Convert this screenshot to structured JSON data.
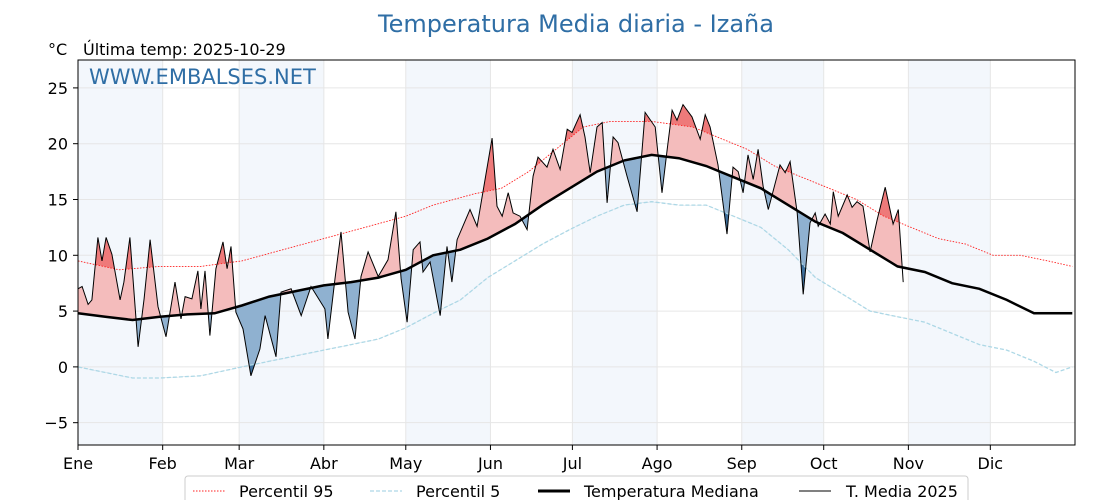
{
  "chart_data": {
    "type": "line",
    "title": "Temperatura Media diaria - Izaña",
    "ylabel": "°C",
    "subtitle": "Última temp: 2025-10-29",
    "watermark": "WWW.EMBALSES.NET",
    "ylim": [
      -7,
      27.5
    ],
    "xlim": [
      0,
      364
    ],
    "yticks": [
      -5,
      0,
      5,
      10,
      15,
      20,
      25
    ],
    "ytick_labels": [
      "−5",
      "0",
      "5",
      "10",
      "15",
      "20",
      "25"
    ],
    "months": [
      {
        "label": "Ene",
        "day": 0
      },
      {
        "label": "Feb",
        "day": 31
      },
      {
        "label": "Mar",
        "day": 59
      },
      {
        "label": "Abr",
        "day": 90
      },
      {
        "label": "May",
        "day": 120
      },
      {
        "label": "Jun",
        "day": 151
      },
      {
        "label": "Jul",
        "day": 181
      },
      {
        "label": "Ago",
        "day": 212
      },
      {
        "label": "Sep",
        "day": 243
      },
      {
        "label": "Oct",
        "day": 273
      },
      {
        "label": "Nov",
        "day": 304
      },
      {
        "label": "Dic",
        "day": 334
      }
    ],
    "grid": true,
    "legend_position": "bottom-center",
    "colors": {
      "title": "#2f6ea5",
      "p95": "#ff2020",
      "p5": "#add8e6",
      "median": "#000000",
      "t2025": "#000000",
      "above": "#f4bcbc",
      "above_p95": "#ee7a7a",
      "below": "#8fb1d0",
      "below_p5": "#3d6f9c",
      "band": "#f3f7fc",
      "grid": "#e6e6e6"
    },
    "series": [
      {
        "name": "Percentil 95",
        "style": "dotted",
        "points": [
          [
            0,
            9.5
          ],
          [
            15,
            8.7
          ],
          [
            30,
            9.0
          ],
          [
            45,
            9.0
          ],
          [
            60,
            9.5
          ],
          [
            75,
            10.5
          ],
          [
            90,
            11.5
          ],
          [
            105,
            12.5
          ],
          [
            120,
            13.5
          ],
          [
            130,
            14.5
          ],
          [
            145,
            15.5
          ],
          [
            155,
            16.0
          ],
          [
            165,
            17.5
          ],
          [
            175,
            19.5
          ],
          [
            185,
            21.5
          ],
          [
            195,
            22.0
          ],
          [
            210,
            22.0
          ],
          [
            225,
            21.5
          ],
          [
            235,
            20.5
          ],
          [
            245,
            19.5
          ],
          [
            255,
            18.0
          ],
          [
            265,
            17.0
          ],
          [
            275,
            16.0
          ],
          [
            285,
            15.0
          ],
          [
            295,
            13.5
          ],
          [
            305,
            12.5
          ],
          [
            315,
            11.5
          ],
          [
            325,
            11.0
          ],
          [
            335,
            10.0
          ],
          [
            345,
            10.0
          ],
          [
            355,
            9.5
          ],
          [
            364,
            9.0
          ]
        ]
      },
      {
        "name": "Percentil 5",
        "style": "dashed",
        "points": [
          [
            0,
            0
          ],
          [
            10,
            -0.5
          ],
          [
            20,
            -1.0
          ],
          [
            30,
            -1.0
          ],
          [
            45,
            -0.8
          ],
          [
            60,
            0
          ],
          [
            70,
            0.5
          ],
          [
            80,
            1.0
          ],
          [
            90,
            1.5
          ],
          [
            100,
            2.0
          ],
          [
            110,
            2.5
          ],
          [
            120,
            3.5
          ],
          [
            130,
            4.8
          ],
          [
            140,
            6.0
          ],
          [
            150,
            8.0
          ],
          [
            160,
            9.5
          ],
          [
            170,
            11.0
          ],
          [
            180,
            12.3
          ],
          [
            190,
            13.5
          ],
          [
            200,
            14.5
          ],
          [
            210,
            14.8
          ],
          [
            220,
            14.5
          ],
          [
            230,
            14.5
          ],
          [
            240,
            13.5
          ],
          [
            250,
            12.5
          ],
          [
            260,
            10.5
          ],
          [
            270,
            8.0
          ],
          [
            280,
            6.5
          ],
          [
            290,
            5.0
          ],
          [
            300,
            4.5
          ],
          [
            310,
            4.0
          ],
          [
            320,
            3.0
          ],
          [
            330,
            2.0
          ],
          [
            340,
            1.5
          ],
          [
            350,
            0.5
          ],
          [
            358,
            -0.5
          ],
          [
            364,
            0
          ]
        ]
      },
      {
        "name": "Temperatura Mediana",
        "style": "thick",
        "points": [
          [
            0,
            4.8
          ],
          [
            10,
            4.5
          ],
          [
            20,
            4.2
          ],
          [
            30,
            4.5
          ],
          [
            40,
            4.7
          ],
          [
            50,
            4.8
          ],
          [
            60,
            5.5
          ],
          [
            70,
            6.3
          ],
          [
            80,
            6.8
          ],
          [
            90,
            7.3
          ],
          [
            100,
            7.6
          ],
          [
            110,
            8.0
          ],
          [
            120,
            8.7
          ],
          [
            130,
            10.0
          ],
          [
            140,
            10.5
          ],
          [
            150,
            11.5
          ],
          [
            160,
            12.8
          ],
          [
            170,
            14.5
          ],
          [
            180,
            16.0
          ],
          [
            190,
            17.5
          ],
          [
            200,
            18.5
          ],
          [
            210,
            19.0
          ],
          [
            220,
            18.7
          ],
          [
            230,
            18.0
          ],
          [
            240,
            17.0
          ],
          [
            250,
            16.0
          ],
          [
            260,
            14.5
          ],
          [
            270,
            13.0
          ],
          [
            280,
            12.0
          ],
          [
            290,
            10.5
          ],
          [
            300,
            9.0
          ],
          [
            310,
            8.5
          ],
          [
            320,
            7.5
          ],
          [
            330,
            7.0
          ],
          [
            340,
            6.0
          ],
          [
            350,
            4.8
          ],
          [
            364,
            4.8
          ]
        ]
      },
      {
        "name": "T. Media 2025",
        "style": "thin",
        "points": [
          [
            0,
            7.0
          ],
          [
            1.5,
            7.2
          ],
          [
            3.7,
            5.6
          ],
          [
            5.1,
            6.0
          ],
          [
            7.3,
            11.6
          ],
          [
            8.8,
            9.5
          ],
          [
            10.3,
            11.6
          ],
          [
            12.4,
            10.1
          ],
          [
            15.4,
            6.0
          ],
          [
            16.8,
            7.6
          ],
          [
            19.0,
            11.6
          ],
          [
            22.0,
            1.8
          ],
          [
            24.2,
            6.1
          ],
          [
            26.4,
            11.4
          ],
          [
            29.3,
            5.4
          ],
          [
            32.2,
            2.7
          ],
          [
            35.5,
            7.6
          ],
          [
            37.7,
            4.3
          ],
          [
            39.2,
            6.3
          ],
          [
            41.7,
            6.1
          ],
          [
            43.9,
            8.6
          ],
          [
            45.0,
            5.2
          ],
          [
            46.5,
            8.6
          ],
          [
            48.3,
            2.8
          ],
          [
            50.5,
            8.8
          ],
          [
            53.1,
            11.2
          ],
          [
            54.6,
            8.8
          ],
          [
            56.0,
            10.8
          ],
          [
            57.8,
            4.9
          ],
          [
            60.4,
            3.4
          ],
          [
            63.3,
            -0.8
          ],
          [
            66.6,
            1.6
          ],
          [
            68.5,
            4.6
          ],
          [
            72.5,
            0.9
          ],
          [
            74.3,
            6.7
          ],
          [
            78.0,
            7.0
          ],
          [
            81.7,
            4.6
          ],
          [
            85.3,
            7.2
          ],
          [
            90.4,
            5.2
          ],
          [
            91.5,
            2.5
          ],
          [
            94.1,
            7.9
          ],
          [
            96.3,
            12.1
          ],
          [
            98.9,
            4.9
          ],
          [
            101.4,
            2.5
          ],
          [
            103.6,
            8.1
          ],
          [
            106.2,
            10.3
          ],
          [
            109.9,
            8.1
          ],
          [
            113.5,
            9.6
          ],
          [
            116.4,
            13.9
          ],
          [
            118.3,
            7.9
          ],
          [
            120.5,
            4.0
          ],
          [
            122.7,
            10.5
          ],
          [
            125.2,
            11.2
          ],
          [
            126.3,
            8.5
          ],
          [
            128.9,
            9.4
          ],
          [
            132.6,
            4.6
          ],
          [
            135.1,
            10.8
          ],
          [
            136.9,
            7.6
          ],
          [
            138.8,
            11.4
          ],
          [
            143.5,
            14.1
          ],
          [
            146.1,
            12.6
          ],
          [
            151.6,
            20.5
          ],
          [
            153.4,
            14.4
          ],
          [
            155.3,
            13.5
          ],
          [
            157.5,
            15.6
          ],
          [
            159.3,
            13.8
          ],
          [
            161.8,
            13.5
          ],
          [
            164.4,
            12.3
          ],
          [
            166.6,
            17.1
          ],
          [
            168.4,
            18.8
          ],
          [
            171.7,
            17.9
          ],
          [
            173.9,
            19.5
          ],
          [
            176.5,
            17.7
          ],
          [
            179.1,
            21.3
          ],
          [
            180.9,
            21.0
          ],
          [
            183.8,
            22.6
          ],
          [
            185.6,
            20.6
          ],
          [
            187.5,
            17.4
          ],
          [
            190.0,
            21.5
          ],
          [
            191.9,
            21.9
          ],
          [
            193.7,
            14.7
          ],
          [
            195.9,
            20.6
          ],
          [
            197.7,
            20.1
          ],
          [
            201.0,
            17.1
          ],
          [
            204.7,
            13.9
          ],
          [
            207.6,
            22.8
          ],
          [
            211.3,
            21.5
          ],
          [
            213.8,
            15.6
          ],
          [
            215.7,
            19.5
          ],
          [
            217.5,
            23.0
          ],
          [
            219.3,
            22.1
          ],
          [
            221.5,
            23.5
          ],
          [
            224.8,
            22.4
          ],
          [
            227.8,
            20.4
          ],
          [
            229.6,
            22.6
          ],
          [
            231.4,
            21.5
          ],
          [
            234.3,
            18.1
          ],
          [
            237.6,
            11.9
          ],
          [
            239.8,
            17.9
          ],
          [
            241.7,
            17.5
          ],
          [
            243.5,
            15.6
          ],
          [
            245.3,
            19.0
          ],
          [
            247.2,
            16.8
          ],
          [
            249.0,
            19.5
          ],
          [
            250.8,
            16.2
          ],
          [
            252.7,
            14.1
          ],
          [
            257.0,
            18.1
          ],
          [
            258.9,
            17.4
          ],
          [
            260.7,
            18.4
          ],
          [
            263.3,
            13.8
          ],
          [
            265.5,
            6.5
          ],
          [
            268.0,
            12.9
          ],
          [
            269.9,
            13.8
          ],
          [
            271.0,
            12.6
          ],
          [
            273.5,
            13.7
          ],
          [
            275.4,
            12.8
          ],
          [
            276.5,
            15.7
          ],
          [
            278.3,
            13.5
          ],
          [
            281.6,
            15.4
          ],
          [
            283.4,
            14.3
          ],
          [
            285.2,
            14.8
          ],
          [
            287.4,
            14.4
          ],
          [
            290.0,
            10.3
          ],
          [
            292.6,
            13.2
          ],
          [
            295.5,
            16.1
          ],
          [
            298.4,
            12.8
          ],
          [
            300.3,
            14.1
          ],
          [
            302.1,
            7.6
          ]
        ]
      }
    ]
  }
}
